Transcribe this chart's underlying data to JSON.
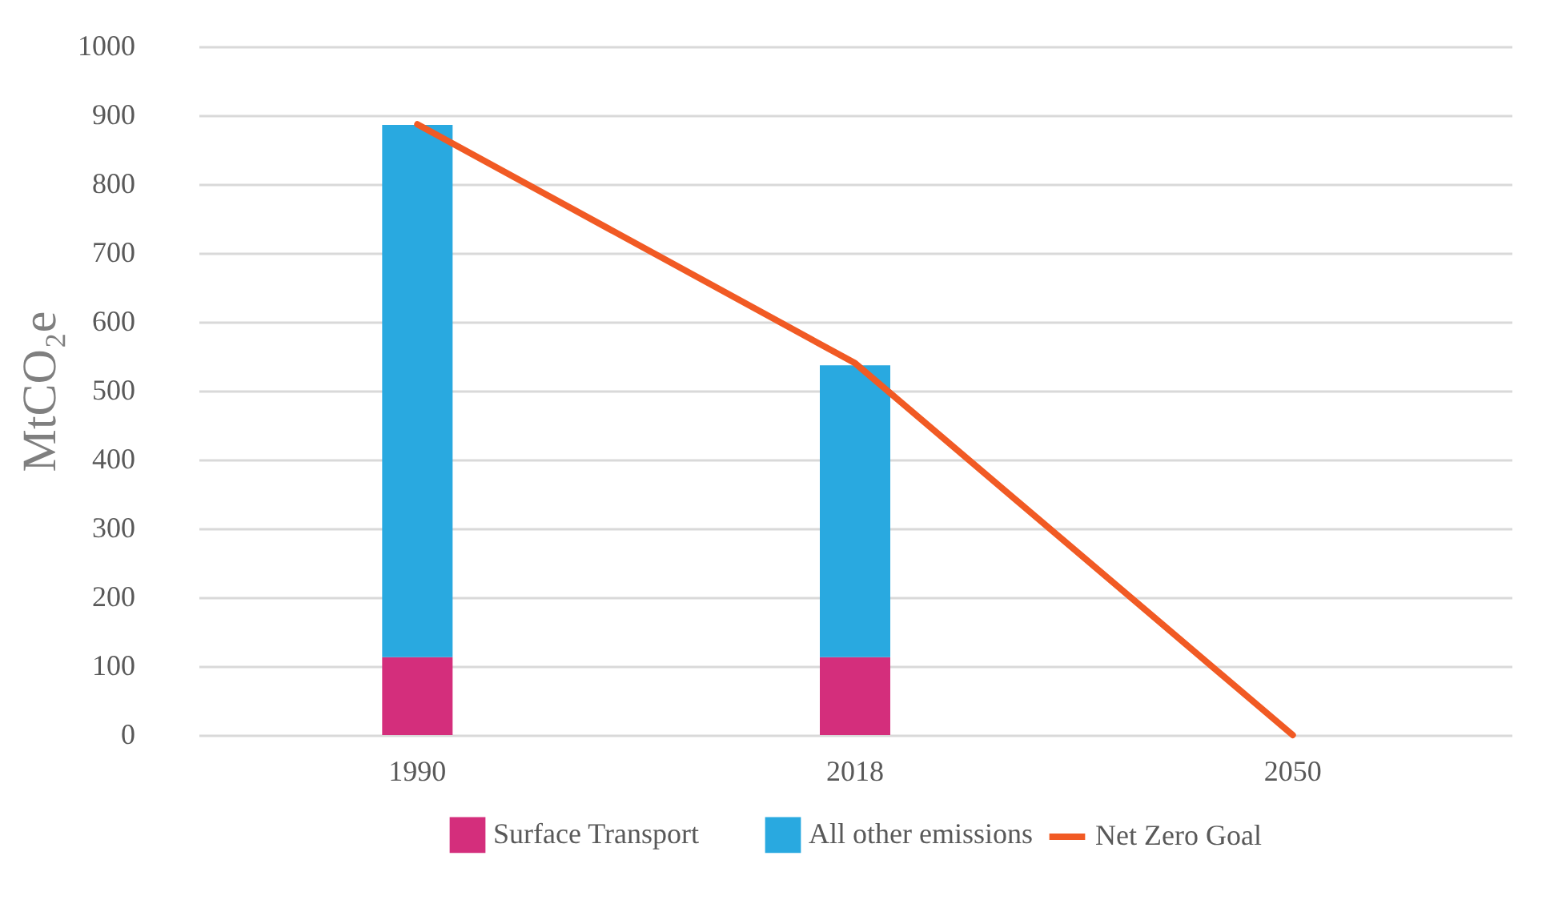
{
  "chart_data": {
    "type": "bar",
    "stacked": true,
    "ylabel": "MtCO₂e",
    "categories": [
      "1990",
      "2018",
      "2050"
    ],
    "series": [
      {
        "name": "Surface Transport",
        "color": "#d42e7c",
        "values": [
          113,
          113,
          null
        ]
      },
      {
        "name": "All other emissions",
        "color": "#29a9e0",
        "values": [
          773,
          424,
          null
        ]
      },
      {
        "name": "Net Zero Goal",
        "type": "line",
        "color": "#f15a24",
        "values": [
          887,
          540,
          0
        ]
      }
    ],
    "ylim": [
      0,
      1000
    ],
    "yticks": [
      0,
      100,
      200,
      300,
      400,
      500,
      600,
      700,
      800,
      900,
      1000
    ],
    "grid": "y",
    "legend": "bottom"
  }
}
